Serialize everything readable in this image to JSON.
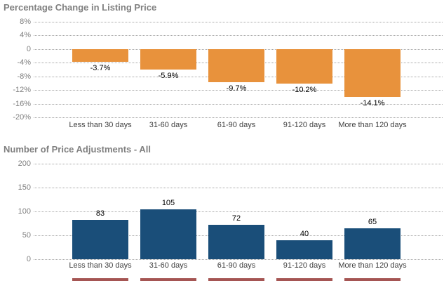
{
  "chart_data": [
    {
      "type": "bar",
      "title": "Percentage Change in Listing Price",
      "categories": [
        "Less than 30 days",
        "31-60 days",
        "61-90 days",
        "91-120 days",
        "More than 120 days"
      ],
      "values": [
        -3.7,
        -5.9,
        -9.7,
        -10.2,
        -14.1
      ],
      "value_labels": [
        "-3.7%",
        "-5.9%",
        "-9.7%",
        "-10.2%",
        "-14.1%"
      ],
      "xlabel": "",
      "ylabel": "",
      "ylim": [
        -20,
        8
      ],
      "yticks": [
        {
          "v": 8,
          "label": "8%"
        },
        {
          "v": 4,
          "label": "4%"
        },
        {
          "v": 0,
          "label": "0"
        },
        {
          "v": -4,
          "label": "-4%"
        },
        {
          "v": -8,
          "label": "-8%"
        },
        {
          "v": -12,
          "label": "-12%"
        },
        {
          "v": -16,
          "label": "-16%"
        },
        {
          "v": -20,
          "label": "-20%"
        }
      ],
      "grid": "dotted-horizontal",
      "legend": "none",
      "bar_color": "#E8923C",
      "value_label_position": "below-bar"
    },
    {
      "type": "bar",
      "title": "Number of Price Adjustments - All",
      "categories": [
        "Less than 30 days",
        "31-60 days",
        "61-90 days",
        "91-120 days",
        "More than 120 days"
      ],
      "values": [
        83,
        105,
        72,
        40,
        65
      ],
      "value_labels": [
        "83",
        "105",
        "72",
        "40",
        "65"
      ],
      "xlabel": "",
      "ylabel": "",
      "ylim": [
        0,
        200
      ],
      "yticks": [
        {
          "v": 200,
          "label": "200"
        },
        {
          "v": 150,
          "label": "150"
        },
        {
          "v": 100,
          "label": "100"
        },
        {
          "v": 50,
          "label": "50"
        },
        {
          "v": 0,
          "label": "0"
        }
      ],
      "grid": "dotted-horizontal",
      "legend": "none",
      "bar_color": "#1A4E79",
      "value_label_position": "above-bar"
    }
  ],
  "cutoff_strip": {
    "description": "top slivers of a third chart's bars cut off at bottom edge",
    "bar_color": "#953735"
  },
  "colors": {
    "background": "#FFFFFF",
    "title_text": "#808080",
    "tick_text": "#808080",
    "category_text": "#404040",
    "gridline": "#A6A6A6",
    "orange_bar": "#E8923C",
    "blue_bar": "#1A4E79",
    "maroon_bar": "#953735"
  }
}
